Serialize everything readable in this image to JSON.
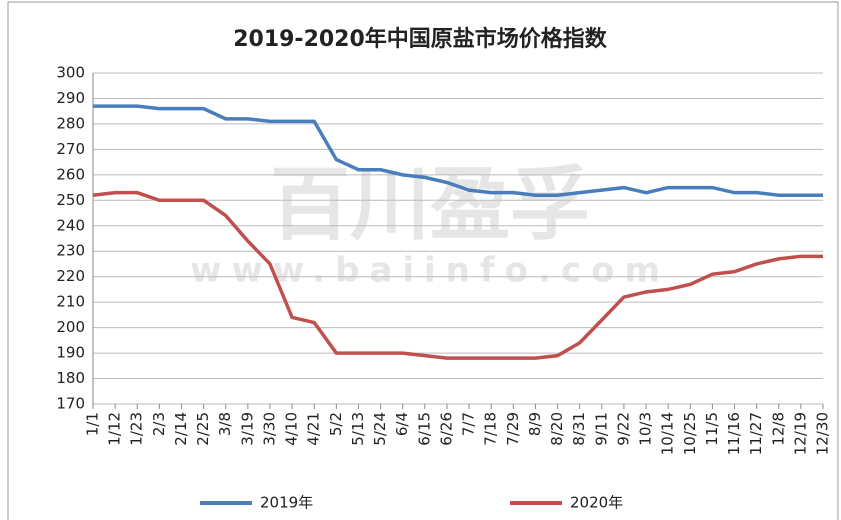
{
  "chart_data": {
    "type": "line",
    "title": "2019-2020年中国原盐市场价格指数",
    "watermark": [
      "百川盈孚",
      "www.baiinfo.com"
    ],
    "categories": [
      "1/1",
      "1/12",
      "1/23",
      "2/3",
      "2/14",
      "2/25",
      "3/8",
      "3/19",
      "3/30",
      "4/10",
      "4/21",
      "5/2",
      "5/13",
      "5/24",
      "6/4",
      "6/15",
      "6/26",
      "7/7",
      "7/18",
      "7/29",
      "8/9",
      "8/20",
      "8/31",
      "9/11",
      "9/22",
      "10/3",
      "10/14",
      "10/25",
      "11/5",
      "11/16",
      "11/27",
      "12/8",
      "12/19",
      "12/30"
    ],
    "series": [
      {
        "name": "2019年",
        "color": "#4a7ebb",
        "values": [
          287,
          287,
          287,
          286,
          286,
          286,
          282,
          282,
          281,
          281,
          281,
          266,
          262,
          262,
          260,
          259,
          257,
          254,
          253,
          253,
          252,
          252,
          253,
          254,
          255,
          253,
          255,
          255,
          255,
          253,
          253,
          252,
          252,
          252
        ]
      },
      {
        "name": "2020年",
        "color": "#c0504d",
        "values": [
          252,
          253,
          253,
          250,
          250,
          250,
          244,
          234,
          225,
          204,
          202,
          190,
          190,
          190,
          190,
          189,
          188,
          188,
          188,
          188,
          188,
          189,
          194,
          203,
          212,
          214,
          215,
          217,
          221,
          222,
          225,
          227,
          228,
          228
        ]
      }
    ],
    "ylim": [
      170,
      300
    ],
    "yticks": [
      170,
      180,
      190,
      200,
      210,
      220,
      230,
      240,
      250,
      260,
      270,
      280,
      290,
      300
    ],
    "grid": true,
    "legend": "bottom"
  }
}
